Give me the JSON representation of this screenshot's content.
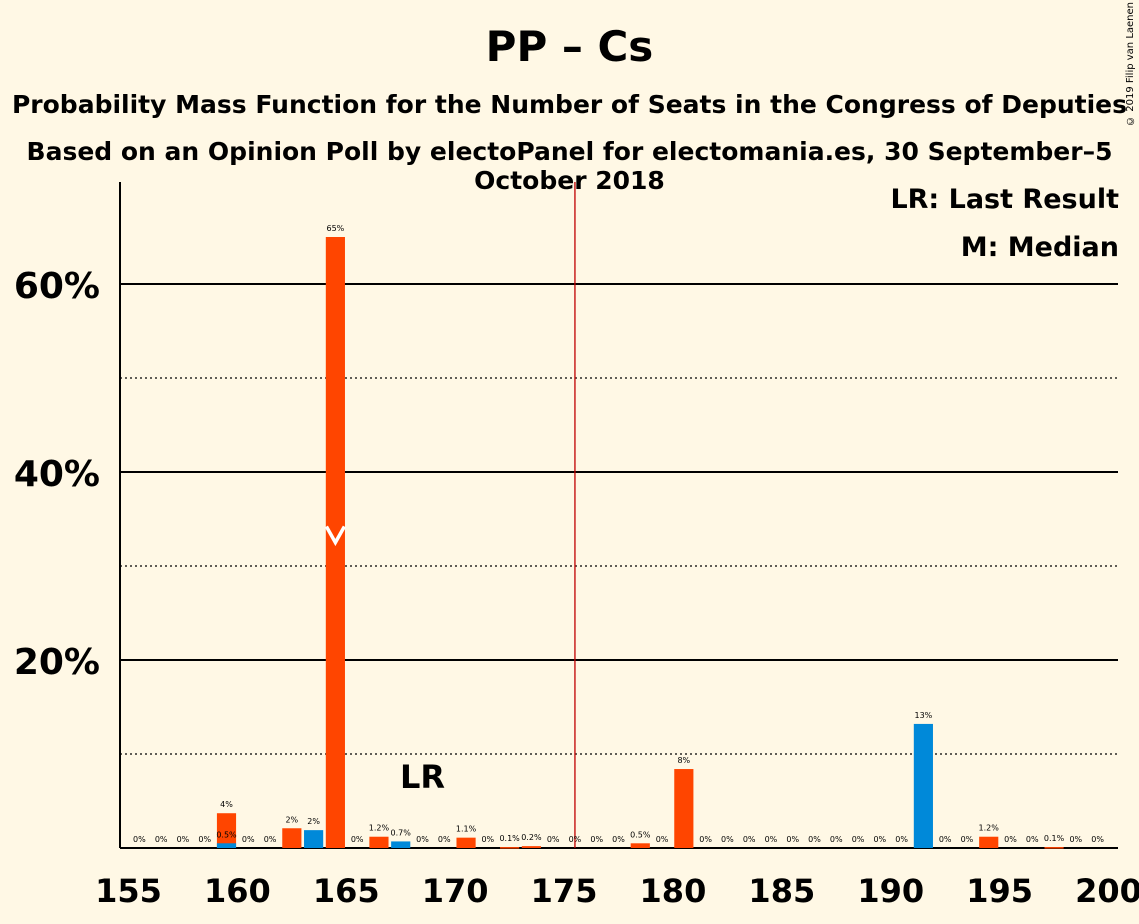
{
  "title": "PP – Cs",
  "subtitle1": "Probability Mass Function for the Number of Seats in the Congress of Deputies",
  "subtitle2": "Based on an Opinion Poll by electoPanel for electomania.es, 30 September–5 October 2018",
  "copyright": "© 2019 Filip van Laenen",
  "legend": {
    "lr": "LR: Last Result",
    "m": "M: Median"
  },
  "colors": {
    "background": "#fff8e5",
    "orange": "#ff4500",
    "blue": "#0089d9",
    "majority": "#c00000",
    "median_marker": "#ffffff"
  },
  "chart_data": {
    "type": "bar",
    "xlim": [
      155,
      200
    ],
    "ylim": [
      0,
      70
    ],
    "x_ticks": [
      155,
      160,
      165,
      170,
      175,
      180,
      185,
      190,
      195,
      200
    ],
    "y_ticks_major": [
      20,
      40,
      60
    ],
    "y_tick_labels": [
      "20%",
      "40%",
      "60%"
    ],
    "y_ticks_minor": [
      10,
      30,
      50
    ],
    "majority_line": 176,
    "last_result": 169,
    "last_result_label": "LR",
    "median": 165,
    "bars": [
      {
        "x": 156,
        "value": 0,
        "label": "0%",
        "color": "orange"
      },
      {
        "x": 157,
        "value": 0,
        "label": "0%",
        "color": "orange"
      },
      {
        "x": 158,
        "value": 0,
        "label": "0%",
        "color": "orange"
      },
      {
        "x": 159,
        "value": 0,
        "label": "0%",
        "color": "orange"
      },
      {
        "x": 160,
        "value": 3.7,
        "label": "4%",
        "color": "orange"
      },
      {
        "x": 160,
        "value": 0.5,
        "label": "0.5%",
        "color": "blue"
      },
      {
        "x": 161,
        "value": 0,
        "label": "0%",
        "color": "orange"
      },
      {
        "x": 162,
        "value": 0,
        "label": "0%",
        "color": "orange"
      },
      {
        "x": 163,
        "value": 2.1,
        "label": "2%",
        "color": "orange"
      },
      {
        "x": 164,
        "value": 1.9,
        "label": "2%",
        "color": "blue"
      },
      {
        "x": 165,
        "value": 65,
        "label": "65%",
        "color": "orange"
      },
      {
        "x": 166,
        "value": 0,
        "label": "0%",
        "color": "orange"
      },
      {
        "x": 167,
        "value": 1.2,
        "label": "1.2%",
        "color": "orange"
      },
      {
        "x": 168,
        "value": 0.7,
        "label": "0.7%",
        "color": "blue"
      },
      {
        "x": 169,
        "value": 0,
        "label": "0%",
        "color": "orange"
      },
      {
        "x": 170,
        "value": 0,
        "label": "0%",
        "color": "orange"
      },
      {
        "x": 171,
        "value": 1.1,
        "label": "1.1%",
        "color": "orange"
      },
      {
        "x": 172,
        "value": 0,
        "label": "0%",
        "color": "orange"
      },
      {
        "x": 173,
        "value": 0.1,
        "label": "0.1%",
        "color": "orange"
      },
      {
        "x": 174,
        "value": 0.2,
        "label": "0.2%",
        "color": "orange"
      },
      {
        "x": 175,
        "value": 0,
        "label": "0%",
        "color": "orange"
      },
      {
        "x": 176,
        "value": 0,
        "label": "0%",
        "color": "orange"
      },
      {
        "x": 177,
        "value": 0,
        "label": "0%",
        "color": "orange"
      },
      {
        "x": 178,
        "value": 0,
        "label": "0%",
        "color": "orange"
      },
      {
        "x": 179,
        "value": 0.5,
        "label": "0.5%",
        "color": "orange"
      },
      {
        "x": 180,
        "value": 0,
        "label": "0%",
        "color": "orange"
      },
      {
        "x": 181,
        "value": 8.4,
        "label": "8%",
        "color": "orange"
      },
      {
        "x": 182,
        "value": 0,
        "label": "0%",
        "color": "orange"
      },
      {
        "x": 183,
        "value": 0,
        "label": "0%",
        "color": "orange"
      },
      {
        "x": 184,
        "value": 0,
        "label": "0%",
        "color": "orange"
      },
      {
        "x": 185,
        "value": 0,
        "label": "0%",
        "color": "orange"
      },
      {
        "x": 186,
        "value": 0,
        "label": "0%",
        "color": "orange"
      },
      {
        "x": 187,
        "value": 0,
        "label": "0%",
        "color": "orange"
      },
      {
        "x": 188,
        "value": 0,
        "label": "0%",
        "color": "orange"
      },
      {
        "x": 189,
        "value": 0,
        "label": "0%",
        "color": "orange"
      },
      {
        "x": 190,
        "value": 0,
        "label": "0%",
        "color": "orange"
      },
      {
        "x": 191,
        "value": 0,
        "label": "0%",
        "color": "orange"
      },
      {
        "x": 192,
        "value": 13.2,
        "label": "13%",
        "color": "blue"
      },
      {
        "x": 193,
        "value": 0,
        "label": "0%",
        "color": "orange"
      },
      {
        "x": 194,
        "value": 0,
        "label": "0%",
        "color": "orange"
      },
      {
        "x": 195,
        "value": 1.2,
        "label": "1.2%",
        "color": "orange"
      },
      {
        "x": 196,
        "value": 0,
        "label": "0%",
        "color": "orange"
      },
      {
        "x": 197,
        "value": 0,
        "label": "0%",
        "color": "orange"
      },
      {
        "x": 198,
        "value": 0.1,
        "label": "0.1%",
        "color": "orange"
      },
      {
        "x": 199,
        "value": 0,
        "label": "0%",
        "color": "orange"
      },
      {
        "x": 200,
        "value": 0,
        "label": "0%",
        "color": "orange"
      }
    ]
  }
}
